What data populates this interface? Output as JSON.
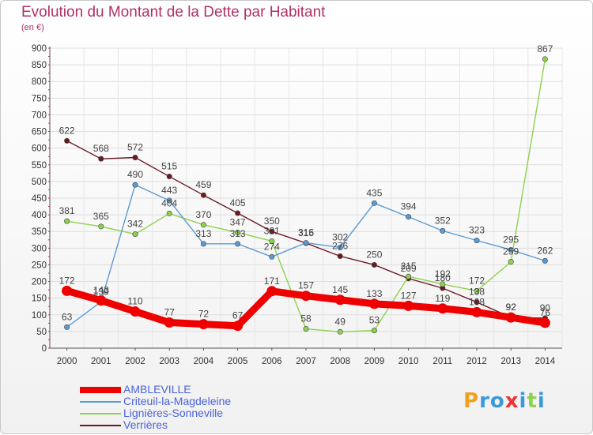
{
  "header": {
    "title": "Evolution du Montant de la Dette par Habitant",
    "subtitle": "(en €)"
  },
  "logo": {
    "text": "Proxiti"
  },
  "chart_data": {
    "type": "line",
    "title": "Evolution du Montant de la Dette par Habitant",
    "ylabel": "(en €)",
    "ylim": [
      0,
      900
    ],
    "yticks": [
      0,
      50,
      100,
      150,
      200,
      250,
      300,
      350,
      400,
      450,
      500,
      550,
      600,
      650,
      700,
      750,
      800,
      850,
      900
    ],
    "categories": [
      "2000",
      "2001",
      "2002",
      "2003",
      "2004",
      "2005",
      "2006",
      "2007",
      "2008",
      "2009",
      "2010",
      "2011",
      "2012",
      "2013",
      "2014"
    ],
    "grid": true,
    "legend": "bottom-left",
    "series": [
      {
        "name": "AMBLEVILLE",
        "color": "#ee0000",
        "values": [
          172,
          143,
          110,
          77,
          72,
          67,
          171,
          157,
          145,
          133,
          127,
          119,
          108,
          92,
          76
        ]
      },
      {
        "name": "Criteuil-la-Magdeleine",
        "color": "#5b9bd5",
        "values": [
          63,
          139,
          490,
          443,
          313,
          313,
          274,
          316,
          302,
          435,
          394,
          352,
          323,
          295,
          262
        ]
      },
      {
        "name": "Lignières-Sonneville",
        "color": "#8fd14f",
        "values": [
          381,
          365,
          342,
          404,
          370,
          347,
          321,
          58,
          49,
          53,
          215,
          192,
          172,
          259,
          867
        ]
      },
      {
        "name": "Verrières",
        "color": "#6b1a24",
        "values": [
          622,
          568,
          572,
          515,
          459,
          405,
          350,
          315,
          276,
          250,
          209,
          180,
          138,
          92,
          90
        ]
      }
    ]
  }
}
